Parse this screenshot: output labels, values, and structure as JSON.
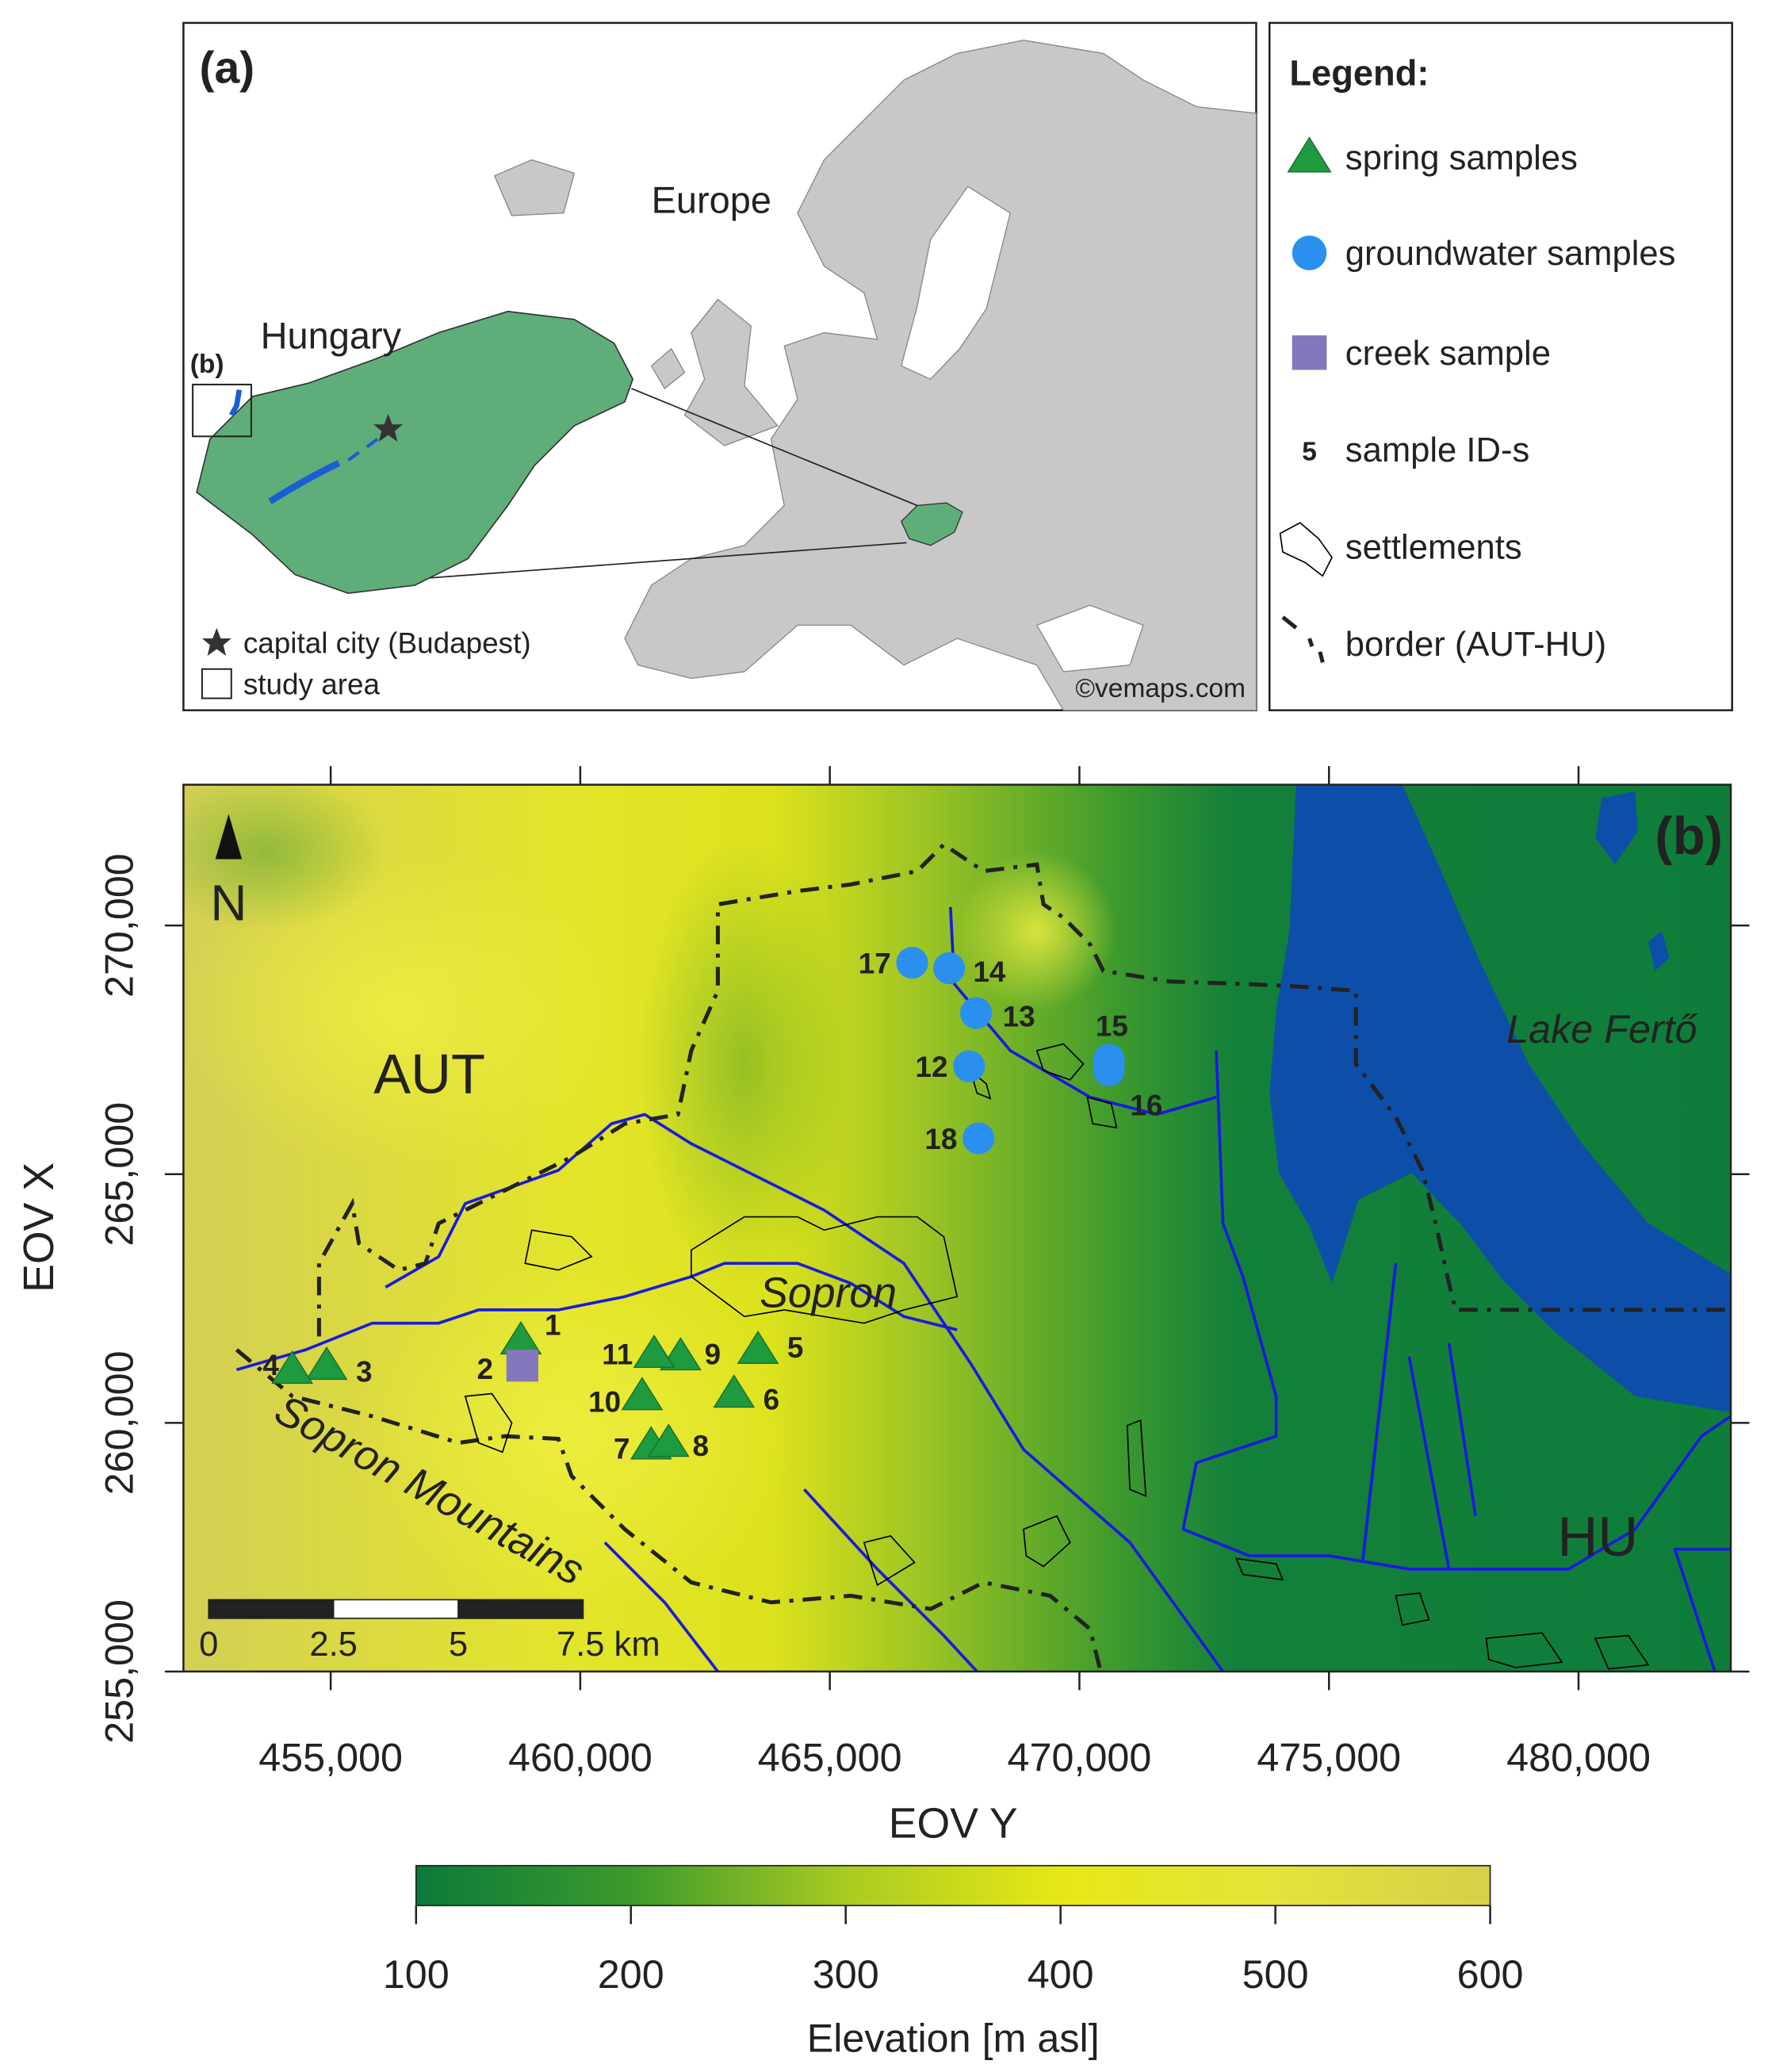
{
  "panel_a": {
    "label": "(a)",
    "continent": "Europe",
    "country": "Hungary",
    "inset_label": "(b)",
    "capital_note": "capital city (Budapest)",
    "study_area_note": "study area",
    "credit": "©vemaps.com"
  },
  "legend": {
    "title": "Legend:",
    "items": [
      {
        "symbol": "triangle",
        "color": "#1e9a3f",
        "label": "spring samples"
      },
      {
        "symbol": "circle",
        "color": "#2b8ff0",
        "label": "groundwater samples"
      },
      {
        "symbol": "square",
        "color": "#8577bb",
        "label": "creek sample"
      },
      {
        "symbol": "5",
        "label": "sample ID-s"
      },
      {
        "symbol": "settlement",
        "label": "settlements"
      },
      {
        "symbol": "border",
        "label": "border (AUT-HU)"
      }
    ]
  },
  "panel_b": {
    "label": "(b)",
    "north": "N",
    "xlabel": "EOV Y",
    "ylabel": "EOV X",
    "xlim": [
      452050,
      483050
    ],
    "ylim": [
      255000,
      272830
    ],
    "xticks": [
      {
        "value": 455000,
        "label": "455,000"
      },
      {
        "value": 460000,
        "label": "460,000"
      },
      {
        "value": 465000,
        "label": "465,000"
      },
      {
        "value": 470000,
        "label": "470,000"
      },
      {
        "value": 475000,
        "label": "475,000"
      },
      {
        "value": 480000,
        "label": "480,000"
      }
    ],
    "yticks": [
      {
        "value": 255000,
        "label": "255,000"
      },
      {
        "value": 260000,
        "label": "260,000"
      },
      {
        "value": 265000,
        "label": "265,000"
      },
      {
        "value": 270000,
        "label": "270,000"
      }
    ],
    "places": {
      "austria": "AUT",
      "hungary": "HU",
      "city": "Sopron",
      "mountains": "Sopron Mountains",
      "lake": "Lake Fertő"
    },
    "scalebar_ticks": [
      0,
      2.5,
      5,
      {
        "value": 7.5,
        "label": "7.5 km"
      }
    ],
    "samples": [
      {
        "id": "1",
        "legend": 0,
        "x": 458810,
        "y": 261660
      },
      {
        "id": "2",
        "legend": 2,
        "x": 458840,
        "y": 261150
      },
      {
        "id": "3",
        "legend": 0,
        "x": 454920,
        "y": 261150
      },
      {
        "id": "4",
        "legend": 0,
        "x": 454230,
        "y": 261070
      },
      {
        "id": "5",
        "legend": 0,
        "x": 463560,
        "y": 261470
      },
      {
        "id": "6",
        "legend": 0,
        "x": 463080,
        "y": 260590
      },
      {
        "id": "7",
        "legend": 0,
        "x": 461420,
        "y": 259550
      },
      {
        "id": "8",
        "legend": 0,
        "x": 461770,
        "y": 259600
      },
      {
        "id": "9",
        "legend": 0,
        "x": 462010,
        "y": 261340
      },
      {
        "id": "10",
        "legend": 0,
        "x": 461240,
        "y": 260540
      },
      {
        "id": "11",
        "legend": 0,
        "x": 461480,
        "y": 261390
      },
      {
        "id": "12",
        "legend": 1,
        "x": 467790,
        "y": 267170
      },
      {
        "id": "13",
        "legend": 1,
        "x": 467930,
        "y": 268240
      },
      {
        "id": "14",
        "legend": 1,
        "x": 467390,
        "y": 269140
      },
      {
        "id": "15",
        "legend": 1,
        "x": 470590,
        "y": 267300
      },
      {
        "id": "16",
        "legend": 1,
        "x": 470590,
        "y": 267090
      },
      {
        "id": "17",
        "legend": 1,
        "x": 466650,
        "y": 269250
      },
      {
        "id": "18",
        "legend": 1,
        "x": 467980,
        "y": 265720
      }
    ]
  },
  "colorbar": {
    "label": "Elevation [m asl]",
    "lim": [
      100,
      600
    ],
    "ticks": [
      100,
      200,
      300,
      400,
      500,
      600
    ],
    "colors": [
      "#0b7a3a",
      "#3c9a2c",
      "#aacb22",
      "#e6e815",
      "#e4e33a",
      "#d7cf4a"
    ]
  }
}
